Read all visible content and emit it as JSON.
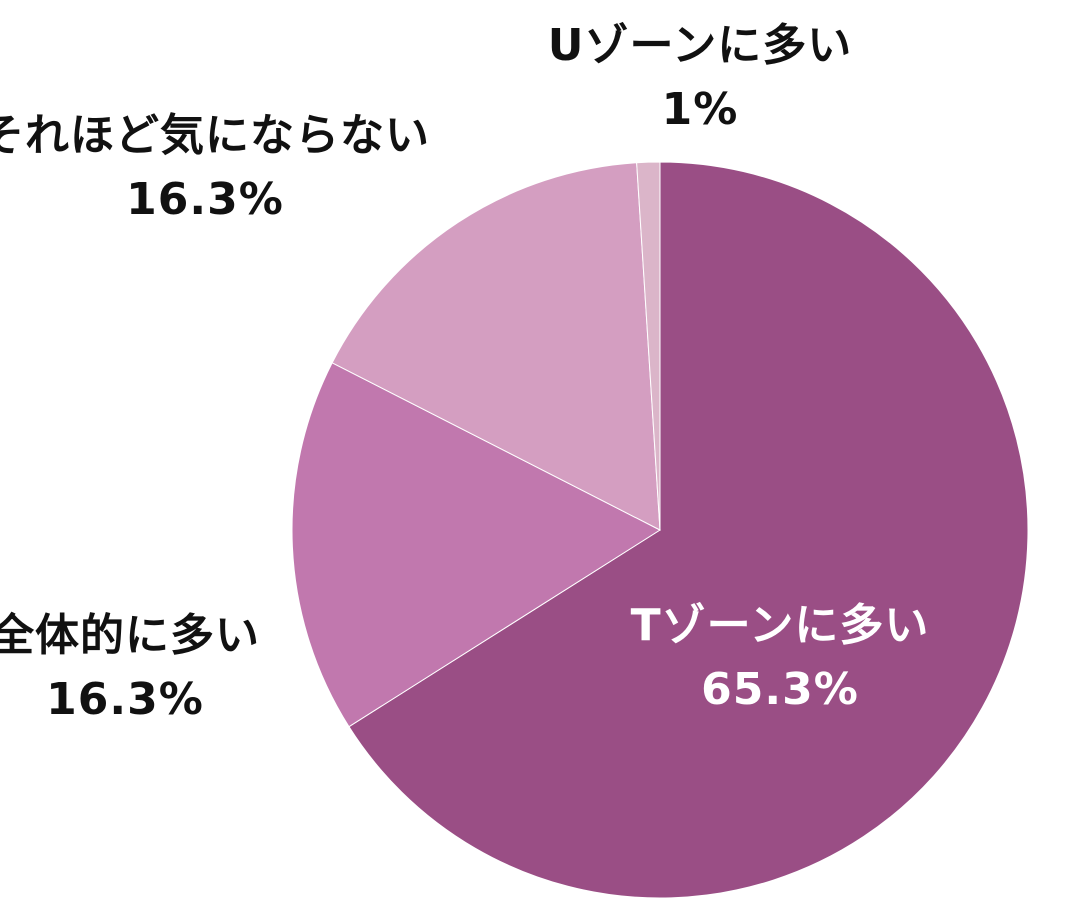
{
  "chart_data": {
    "type": "pie",
    "categories": [
      "Tゾーンに多い",
      "全体的に多い",
      "それほど気にならない",
      "Uゾーンに多い"
    ],
    "values": [
      65.3,
      16.3,
      16.3,
      1
    ],
    "value_labels": [
      "65.3%",
      "16.3%",
      "16.3%",
      "1%"
    ],
    "colors": [
      "#9a4e85",
      "#c178ae",
      "#d49ec1",
      "#dbb5c9"
    ],
    "label_colors": [
      "#ffffff",
      "#111111",
      "#111111",
      "#111111"
    ],
    "start": "12 o'clock",
    "direction": "clockwise",
    "legend": "none"
  }
}
